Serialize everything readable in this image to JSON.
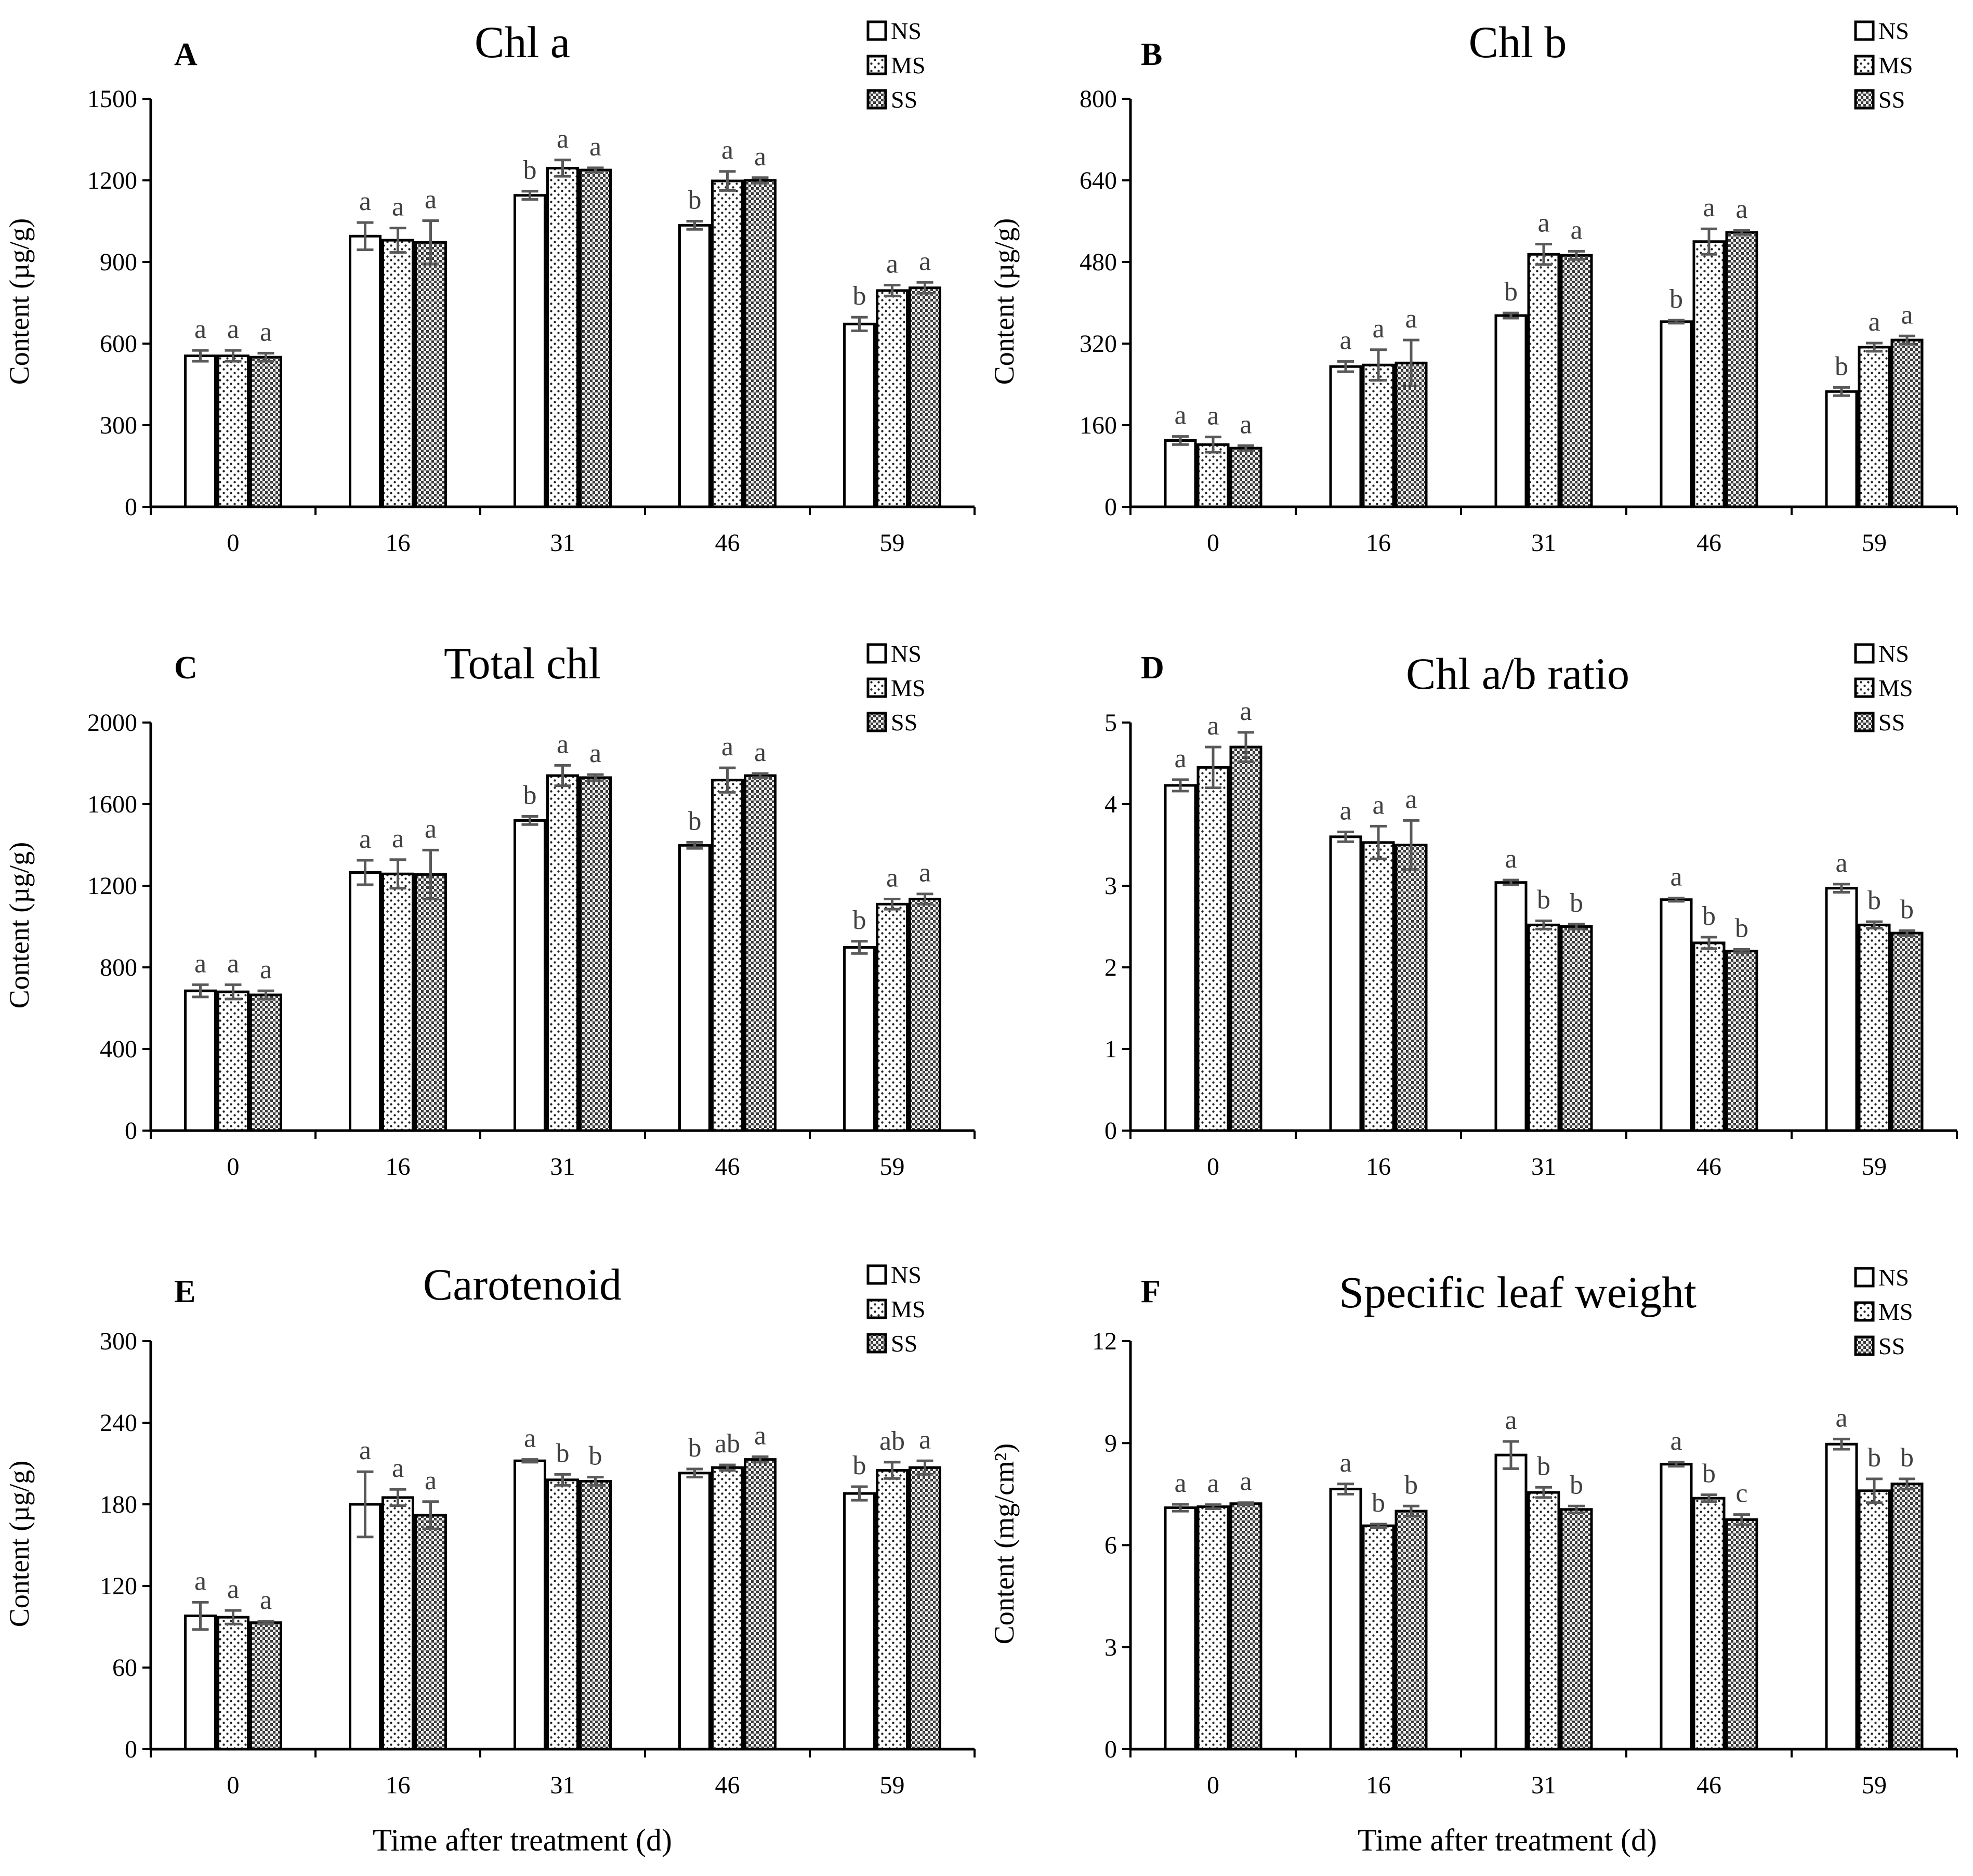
{
  "figure": {
    "x_axis_title": "Time after treatment (d)"
  },
  "legend": [
    "NS",
    "MS",
    "SS"
  ],
  "chart_data": [
    {
      "panel": "A",
      "type": "bar",
      "title": "Chl  a",
      "ylabel": "Content (µg/g)",
      "xlabel": "Time after treatment (d)",
      "categories": [
        "0",
        "16",
        "31",
        "46",
        "59"
      ],
      "ylim": [
        0,
        1500
      ],
      "yticks": [
        0,
        300,
        600,
        900,
        1200,
        1500
      ],
      "series": [
        {
          "name": "NS",
          "values": [
            555,
            995,
            1145,
            1035,
            672
          ],
          "errors": [
            20,
            50,
            15,
            15,
            25
          ],
          "labels": [
            "a",
            "a",
            "b",
            "b",
            "b"
          ]
        },
        {
          "name": "MS",
          "values": [
            555,
            980,
            1245,
            1198,
            795
          ],
          "errors": [
            20,
            45,
            30,
            35,
            20
          ],
          "labels": [
            "a",
            "a",
            "a",
            "a",
            "a"
          ]
        },
        {
          "name": "SS",
          "values": [
            550,
            972,
            1238,
            1200,
            805
          ],
          "errors": [
            15,
            80,
            8,
            10,
            20
          ],
          "labels": [
            "a",
            "a",
            "a",
            "a",
            "a"
          ]
        }
      ]
    },
    {
      "panel": "B",
      "type": "bar",
      "title": "Chl b",
      "ylabel": "Content (µg/g)",
      "xlabel": "Time after treatment (d)",
      "categories": [
        "0",
        "16",
        "31",
        "46",
        "59"
      ],
      "ylim": [
        0,
        800
      ],
      "yticks": [
        0,
        160,
        320,
        480,
        640,
        800
      ],
      "series": [
        {
          "name": "NS",
          "values": [
            130,
            275,
            375,
            363,
            226
          ],
          "errors": [
            8,
            10,
            5,
            3,
            8
          ],
          "labels": [
            "a",
            "a",
            "b",
            "b",
            "b"
          ]
        },
        {
          "name": "MS",
          "values": [
            122,
            278,
            495,
            520,
            313
          ],
          "errors": [
            15,
            30,
            20,
            25,
            8
          ],
          "labels": [
            "a",
            "a",
            "a",
            "a",
            "a"
          ]
        },
        {
          "name": "SS",
          "values": [
            115,
            282,
            493,
            538,
            327
          ],
          "errors": [
            5,
            45,
            8,
            4,
            8
          ],
          "labels": [
            "a",
            "a",
            "a",
            "a",
            "a"
          ]
        }
      ]
    },
    {
      "panel": "C",
      "type": "bar",
      "title": "Total chl",
      "ylabel": "Content (µg/g)",
      "xlabel": "Time after treatment (d)",
      "categories": [
        "0",
        "16",
        "31",
        "46",
        "59"
      ],
      "ylim": [
        0,
        2000
      ],
      "yticks": [
        0,
        400,
        800,
        1200,
        1600,
        2000
      ],
      "series": [
        {
          "name": "NS",
          "values": [
            685,
            1265,
            1520,
            1398,
            898
          ],
          "errors": [
            30,
            60,
            20,
            15,
            30
          ],
          "labels": [
            "a",
            "a",
            "b",
            "b",
            "b"
          ]
        },
        {
          "name": "MS",
          "values": [
            680,
            1258,
            1740,
            1718,
            1110
          ],
          "errors": [
            35,
            70,
            50,
            60,
            25
          ],
          "labels": [
            "a",
            "a",
            "a",
            "a",
            "a"
          ]
        },
        {
          "name": "SS",
          "values": [
            665,
            1255,
            1730,
            1740,
            1135
          ],
          "errors": [
            20,
            120,
            15,
            10,
            25
          ],
          "labels": [
            "a",
            "a",
            "a",
            "a",
            "a"
          ]
        }
      ]
    },
    {
      "panel": "D",
      "type": "bar",
      "title": "Chl a/b ratio",
      "ylabel": "",
      "xlabel": "Time after treatment (d)",
      "categories": [
        "0",
        "16",
        "31",
        "46",
        "59"
      ],
      "ylim": [
        0,
        5
      ],
      "yticks": [
        0,
        1,
        2,
        3,
        4,
        5
      ],
      "series": [
        {
          "name": "NS",
          "values": [
            4.23,
            3.6,
            3.04,
            2.83,
            2.97
          ],
          "errors": [
            0.07,
            0.06,
            0.03,
            0.02,
            0.05
          ],
          "labels": [
            "a",
            "a",
            "a",
            "a",
            "a"
          ]
        },
        {
          "name": "MS",
          "values": [
            4.45,
            3.53,
            2.52,
            2.3,
            2.52
          ],
          "errors": [
            0.25,
            0.2,
            0.05,
            0.07,
            0.04
          ],
          "labels": [
            "a",
            "a",
            "b",
            "b",
            "b"
          ]
        },
        {
          "name": "SS",
          "values": [
            4.7,
            3.5,
            2.5,
            2.2,
            2.42
          ],
          "errors": [
            0.18,
            0.3,
            0.03,
            0.02,
            0.03
          ],
          "labels": [
            "a",
            "a",
            "b",
            "b",
            "b"
          ]
        }
      ]
    },
    {
      "panel": "E",
      "type": "bar",
      "title": "Carotenoid",
      "ylabel": "Content (µg/g)",
      "xlabel": "Time after treatment (d)",
      "categories": [
        "0",
        "16",
        "31",
        "46",
        "59"
      ],
      "ylim": [
        0,
        300
      ],
      "yticks": [
        0,
        60,
        120,
        180,
        240,
        300
      ],
      "series": [
        {
          "name": "NS",
          "values": [
            98,
            180,
            212,
            203,
            188
          ],
          "errors": [
            10,
            24,
            1,
            3,
            5
          ],
          "labels": [
            "a",
            "a",
            "a",
            "b",
            "b"
          ]
        },
        {
          "name": "MS",
          "values": [
            97,
            185,
            198,
            207,
            205
          ],
          "errors": [
            5,
            6,
            4,
            2,
            6
          ],
          "labels": [
            "a",
            "a",
            "b",
            "ab",
            "ab"
          ]
        },
        {
          "name": "SS",
          "values": [
            93,
            172,
            197,
            213,
            207
          ],
          "errors": [
            1,
            10,
            3,
            2,
            5
          ],
          "labels": [
            "a",
            "a",
            "b",
            "a",
            "a"
          ]
        }
      ]
    },
    {
      "panel": "F",
      "type": "bar",
      "title": "Specific leaf weight",
      "ylabel": "Content (mg/cm²)",
      "xlabel": "Time after treatment (d)",
      "categories": [
        "0",
        "16",
        "31",
        "46",
        "59"
      ],
      "ylim": [
        0,
        12
      ],
      "yticks": [
        0,
        3,
        6,
        9,
        12
      ],
      "series": [
        {
          "name": "NS",
          "values": [
            7.1,
            7.65,
            8.65,
            8.38,
            8.97
          ],
          "errors": [
            0.1,
            0.15,
            0.4,
            0.06,
            0.15
          ],
          "labels": [
            "a",
            "a",
            "a",
            "a",
            "a"
          ]
        },
        {
          "name": "MS",
          "values": [
            7.13,
            6.57,
            7.55,
            7.38,
            7.6
          ],
          "errors": [
            0.06,
            0.05,
            0.15,
            0.1,
            0.35
          ],
          "labels": [
            "a",
            "b",
            "b",
            "b",
            "b"
          ]
        },
        {
          "name": "SS",
          "values": [
            7.22,
            7.0,
            7.05,
            6.75,
            7.8
          ],
          "errors": [
            0.03,
            0.15,
            0.1,
            0.15,
            0.15
          ],
          "labels": [
            "a",
            "b",
            "b",
            "c",
            "b"
          ]
        }
      ]
    }
  ]
}
